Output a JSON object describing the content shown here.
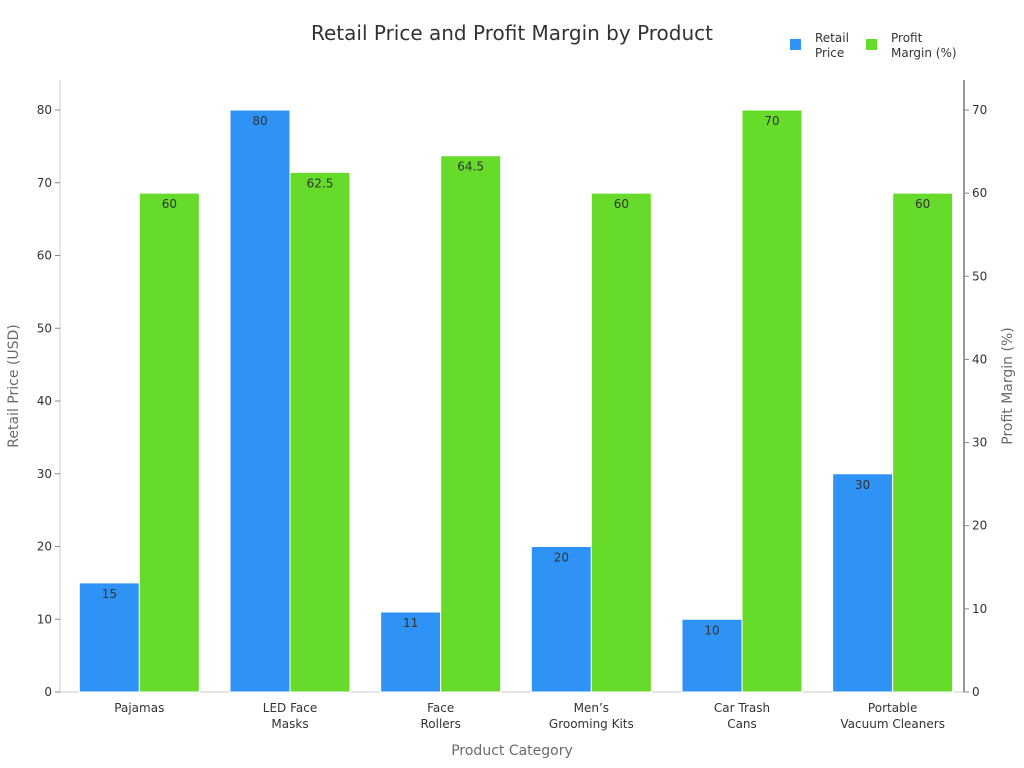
{
  "chart_data": {
    "type": "bar",
    "title": "Retail Price and Profit Margin by Product",
    "xlabel": "Product Category",
    "ylabel_left": "Retail Price (USD)",
    "ylabel_right": "Profit Margin (%)",
    "categories": [
      [
        "Pajamas"
      ],
      [
        "LED Face",
        "Masks"
      ],
      [
        "Face",
        "Rollers"
      ],
      [
        "Men’s",
        "Grooming Kits"
      ],
      [
        "Car Trash",
        "Cans"
      ],
      [
        "Portable",
        "Vacuum Cleaners"
      ]
    ],
    "series": [
      {
        "name": [
          "Retail",
          "Price"
        ],
        "axis": "left",
        "color": "#2e93f5",
        "values": [
          15,
          80,
          11,
          20,
          10,
          30
        ],
        "labels": [
          "15",
          "80",
          "11",
          "20",
          "10",
          "30"
        ]
      },
      {
        "name": [
          "Profit",
          "Margin (%)"
        ],
        "axis": "right",
        "color": "#66db2a",
        "values": [
          60,
          62.5,
          64.5,
          60,
          70,
          60
        ],
        "labels": [
          "60",
          "62.5",
          "64.5",
          "60",
          "70",
          "60"
        ]
      }
    ],
    "ylim_left": [
      0,
      80
    ],
    "ylim_right": [
      0,
      70
    ],
    "yticks_left": [
      "0",
      "10",
      "20",
      "30",
      "40",
      "50",
      "60",
      "70",
      "80"
    ],
    "yticks_right": [
      "0",
      "10",
      "20",
      "30",
      "40",
      "50",
      "60",
      "70"
    ],
    "grid": false,
    "legend": "top-right"
  }
}
